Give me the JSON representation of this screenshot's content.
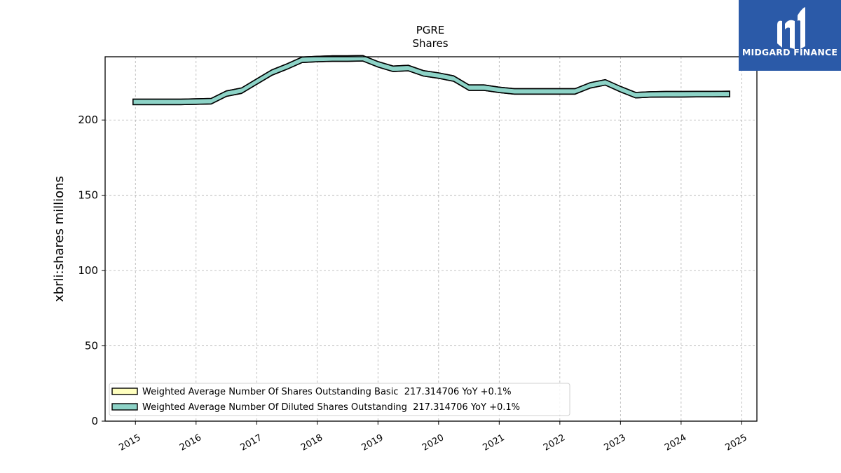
{
  "logo": {
    "text": "MIDGARD FINANCE",
    "background": "#2b5aa8"
  },
  "chart_data": {
    "type": "area",
    "title": "PGRE",
    "subtitle": "Shares",
    "xlabel": "",
    "ylabel": "xbrli:shares millions",
    "xlim": [
      2014.5,
      2025.25
    ],
    "ylim": [
      0,
      242
    ],
    "x_ticks": [
      "2015",
      "2016",
      "2017",
      "2018",
      "2019",
      "2020",
      "2021",
      "2022",
      "2023",
      "2024",
      "2025"
    ],
    "y_ticks": [
      "0",
      "50",
      "100",
      "150",
      "200"
    ],
    "grid": true,
    "legend_position": "lower-left",
    "series": [
      {
        "name": "Weighted Average Number Of Shares Outstanding Basic  217.314706 YoY +0.1%",
        "color": "#ffffbf",
        "x": [
          2014.96,
          2015.75,
          2016.25,
          2016.5,
          2016.75,
          2017.0,
          2017.25,
          2017.5,
          2017.75,
          2018.0,
          2018.25,
          2018.5,
          2018.75,
          2019.0,
          2019.25,
          2019.5,
          2019.75,
          2020.0,
          2020.25,
          2020.5,
          2020.75,
          2021.0,
          2021.25,
          2021.5,
          2021.75,
          2022.0,
          2022.25,
          2022.5,
          2022.75,
          2023.0,
          2023.25,
          2023.5,
          2023.75,
          2024.0,
          2024.25,
          2024.5,
          2024.8
        ],
        "y": [
          212,
          212,
          212.5,
          217.5,
          219.5,
          225.5,
          231.5,
          235.5,
          240,
          240.5,
          240.8,
          240.8,
          241,
          237,
          234,
          234.5,
          231,
          229.5,
          227.5,
          221.5,
          221.5,
          220,
          219,
          219,
          219,
          219,
          219,
          223,
          225,
          220.5,
          216.5,
          217,
          217.1,
          217.1,
          217.2,
          217.2,
          217.3
        ]
      },
      {
        "name": "Weighted Average Number Of Diluted Shares Outstanding  217.314706 YoY +0.1%",
        "color": "#8dd3c7",
        "x": [
          2014.96,
          2015.75,
          2016.25,
          2016.5,
          2016.75,
          2017.0,
          2017.25,
          2017.5,
          2017.75,
          2018.0,
          2018.25,
          2018.5,
          2018.75,
          2019.0,
          2019.25,
          2019.5,
          2019.75,
          2020.0,
          2020.25,
          2020.5,
          2020.75,
          2021.0,
          2021.25,
          2021.5,
          2021.75,
          2022.0,
          2022.25,
          2022.5,
          2022.75,
          2023.0,
          2023.25,
          2023.5,
          2023.75,
          2024.0,
          2024.25,
          2024.5,
          2024.8
        ],
        "y": [
          212,
          212,
          212.5,
          217.5,
          219.5,
          225.5,
          231.5,
          235.5,
          240,
          240.5,
          240.8,
          240.8,
          241,
          237,
          234,
          234.5,
          231,
          229.5,
          227.5,
          221.5,
          221.5,
          220,
          219,
          219,
          219,
          219,
          219,
          223,
          225,
          220.5,
          216.5,
          217,
          217.1,
          217.1,
          217.2,
          217.2,
          217.3
        ]
      }
    ]
  }
}
